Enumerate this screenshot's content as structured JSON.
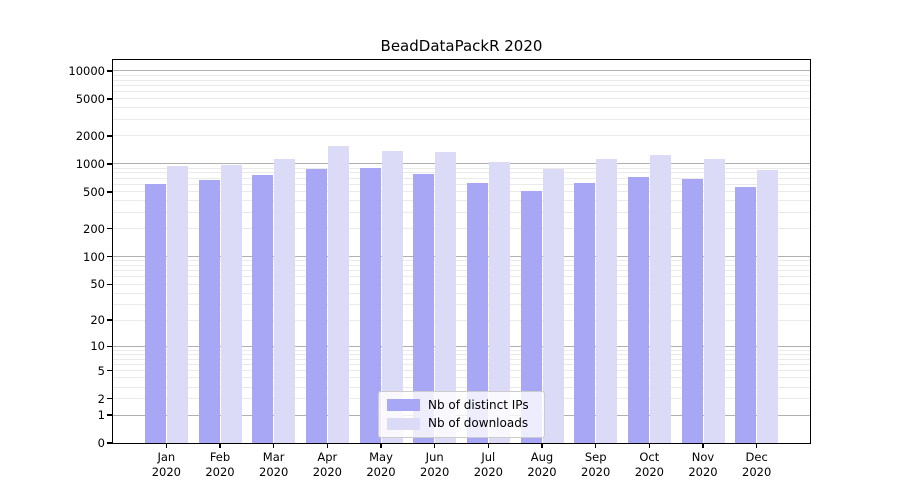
{
  "title": "BeadDataPackR 2020",
  "colors": {
    "ips_bar": "#a7a7f5",
    "downloads_bar": "#dbdbf8",
    "grid_major": "#b0b0b0",
    "grid_minor": "#eaeaea",
    "axis": "#000000",
    "legend_border": "#cccccc"
  },
  "legend": {
    "items": [
      {
        "label": "Nb of distinct IPs",
        "color_key": "ips_bar"
      },
      {
        "label": "Nb of downloads",
        "color_key": "downloads_bar"
      }
    ],
    "position": "lower center"
  },
  "chart_data": {
    "type": "bar",
    "title": "BeadDataPackR 2020",
    "categories": [
      {
        "month": "Jan",
        "year": "2020"
      },
      {
        "month": "Feb",
        "year": "2020"
      },
      {
        "month": "Mar",
        "year": "2020"
      },
      {
        "month": "Apr",
        "year": "2020"
      },
      {
        "month": "May",
        "year": "2020"
      },
      {
        "month": "Jun",
        "year": "2020"
      },
      {
        "month": "Jul",
        "year": "2020"
      },
      {
        "month": "Aug",
        "year": "2020"
      },
      {
        "month": "Sep",
        "year": "2020"
      },
      {
        "month": "Oct",
        "year": "2020"
      },
      {
        "month": "Nov",
        "year": "2020"
      },
      {
        "month": "Dec",
        "year": "2020"
      }
    ],
    "series": [
      {
        "name": "Nb of distinct IPs",
        "color": "#a7a7f5",
        "values": [
          605,
          670,
          770,
          880,
          915,
          775,
          630,
          515,
          630,
          720,
          695,
          560
        ]
      },
      {
        "name": "Nb of downloads",
        "color": "#dbdbf8",
        "values": [
          940,
          975,
          1120,
          1570,
          1380,
          1330,
          1060,
          875,
          1120,
          1240,
          1120,
          860
        ]
      }
    ],
    "xlabel": "",
    "ylabel": "",
    "yscale": "log1p",
    "ylim": [
      0,
      13000
    ],
    "yticks": [
      0,
      1,
      2,
      5,
      10,
      20,
      50,
      100,
      200,
      500,
      1000,
      2000,
      5000,
      10000
    ],
    "ytick_labels": [
      "0",
      "1",
      "2",
      "5",
      "10",
      "20",
      "50",
      "100",
      "200",
      "500",
      "1000",
      "2000",
      "5000",
      "10000"
    ],
    "grid": "horizontal, major and log-minor lines",
    "legend_position": "lower center"
  }
}
